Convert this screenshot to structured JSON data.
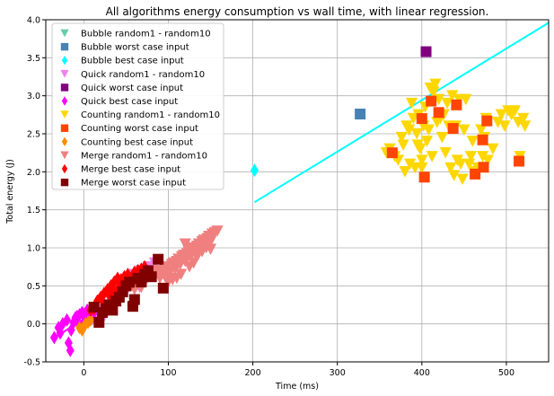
{
  "chart_data": {
    "type": "scatter",
    "title": "All algorithms energy consumption vs wall time, with linear regression.",
    "xlabel": "Time (ms)",
    "ylabel": "Total energy (J)",
    "xlim": [
      -45,
      550
    ],
    "ylim": [
      -0.5,
      4.0
    ],
    "xticks": [
      0,
      100,
      200,
      300,
      400,
      500
    ],
    "yticks": [
      -0.5,
      0.0,
      0.5,
      1.0,
      1.5,
      2.0,
      2.5,
      3.0,
      3.5,
      4.0
    ],
    "grid": true,
    "legend_position": "top-left",
    "series": [
      {
        "name": "Bubble random1 - random10",
        "marker": "triangle-down",
        "color": "#66cdaa",
        "points": []
      },
      {
        "name": "Bubble worst case input",
        "marker": "square",
        "color": "#4682b4",
        "points": [
          [
            327,
            2.76
          ]
        ]
      },
      {
        "name": "Bubble best case input",
        "marker": "diamond",
        "color": "#00ffff",
        "points": [
          [
            202,
            2.02
          ]
        ]
      },
      {
        "name": "Quick random1 - random10",
        "marker": "triangle-down",
        "color": "#ee82ee",
        "points": [
          [
            10,
            0.05
          ],
          [
            14,
            0.12
          ],
          [
            18,
            0.08
          ],
          [
            22,
            0.18
          ],
          [
            26,
            0.25
          ],
          [
            30,
            0.35
          ],
          [
            33,
            0.42
          ],
          [
            36,
            0.38
          ],
          [
            40,
            0.45
          ],
          [
            44,
            0.5
          ],
          [
            48,
            0.55
          ],
          [
            52,
            0.6
          ],
          [
            56,
            0.5
          ],
          [
            60,
            0.65
          ],
          [
            64,
            0.55
          ],
          [
            68,
            0.7
          ],
          [
            72,
            0.62
          ],
          [
            76,
            0.75
          ],
          [
            80,
            0.68
          ],
          [
            84,
            0.8
          ],
          [
            28,
            0.2
          ],
          [
            24,
            0.1
          ],
          [
            34,
            0.3
          ],
          [
            42,
            0.48
          ],
          [
            50,
            0.42
          ],
          [
            58,
            0.58
          ],
          [
            66,
            0.48
          ],
          [
            74,
            0.72
          ],
          [
            20,
            0.02
          ],
          [
            38,
            0.25
          ]
        ]
      },
      {
        "name": "Quick worst case input",
        "marker": "square",
        "color": "#800080",
        "points": [
          [
            405,
            3.58
          ]
        ]
      },
      {
        "name": "Quick best case input",
        "marker": "diamond",
        "color": "#ff00ff",
        "points": [
          [
            -35,
            -0.18
          ],
          [
            -30,
            -0.05
          ],
          [
            -25,
            0.0
          ],
          [
            -20,
            0.05
          ],
          [
            -18,
            -0.25
          ],
          [
            -15,
            -0.08
          ],
          [
            -12,
            0.02
          ],
          [
            -10,
            0.08
          ],
          [
            -8,
            0.1
          ],
          [
            -5,
            0.12
          ],
          [
            -2,
            0.15
          ],
          [
            0,
            0.02
          ],
          [
            2,
            0.08
          ],
          [
            5,
            0.05
          ],
          [
            8,
            0.1
          ],
          [
            12,
            0.15
          ],
          [
            -28,
            -0.12
          ],
          [
            -16,
            -0.35
          ],
          [
            -6,
            0.0
          ],
          [
            4,
            0.18
          ]
        ]
      },
      {
        "name": "Counting random1 - random10",
        "marker": "triangle-down",
        "color": "#ffd700",
        "points": [
          [
            358,
            2.25
          ],
          [
            362,
            2.3
          ],
          [
            368,
            2.2
          ],
          [
            372,
            2.15
          ],
          [
            376,
            2.45
          ],
          [
            378,
            2.35
          ],
          [
            382,
            2.6
          ],
          [
            386,
            2.1
          ],
          [
            388,
            2.9
          ],
          [
            390,
            2.7
          ],
          [
            392,
            2.05
          ],
          [
            394,
            2.5
          ],
          [
            396,
            2.75
          ],
          [
            398,
            2.3
          ],
          [
            400,
            2.15
          ],
          [
            402,
            2.6
          ],
          [
            404,
            2.85
          ],
          [
            406,
            2.4
          ],
          [
            408,
            2.55
          ],
          [
            410,
            3.1
          ],
          [
            412,
            2.2
          ],
          [
            414,
            3.05
          ],
          [
            416,
            3.15
          ],
          [
            418,
            2.65
          ],
          [
            420,
            2.95
          ],
          [
            422,
            2.7
          ],
          [
            424,
            2.45
          ],
          [
            426,
            2.75
          ],
          [
            430,
            2.9
          ],
          [
            434,
            2.05
          ],
          [
            436,
            3.0
          ],
          [
            438,
            1.95
          ],
          [
            440,
            2.6
          ],
          [
            442,
            2.15
          ],
          [
            444,
            2.95
          ],
          [
            446,
            2.1
          ],
          [
            448,
            1.9
          ],
          [
            450,
            2.55
          ],
          [
            452,
            2.95
          ],
          [
            456,
            2.1
          ],
          [
            458,
            2.2
          ],
          [
            460,
            2.4
          ],
          [
            462,
            2.0
          ],
          [
            466,
            2.05
          ],
          [
            470,
            2.55
          ],
          [
            472,
            2.2
          ],
          [
            474,
            2.45
          ],
          [
            476,
            2.7
          ],
          [
            478,
            2.15
          ],
          [
            484,
            2.3
          ],
          [
            490,
            2.65
          ],
          [
            494,
            2.75
          ],
          [
            498,
            2.6
          ],
          [
            502,
            2.8
          ],
          [
            506,
            2.75
          ],
          [
            510,
            2.8
          ],
          [
            514,
            2.65
          ],
          [
            516,
            2.2
          ],
          [
            520,
            2.7
          ],
          [
            522,
            2.6
          ],
          [
            380,
            2.0
          ],
          [
            385,
            2.55
          ],
          [
            395,
            2.35
          ],
          [
            400,
            2.05
          ],
          [
            428,
            2.25
          ],
          [
            432,
            2.6
          ]
        ]
      },
      {
        "name": "Counting worst case input",
        "marker": "square",
        "color": "#ff4500",
        "points": [
          [
            365,
            2.25
          ],
          [
            400,
            2.7
          ],
          [
            403,
            1.93
          ],
          [
            411,
            2.93
          ],
          [
            420,
            2.78
          ],
          [
            437,
            2.57
          ],
          [
            441,
            2.88
          ],
          [
            463,
            1.97
          ],
          [
            472,
            2.42
          ],
          [
            473,
            2.06
          ],
          [
            477,
            2.67
          ],
          [
            515,
            2.14
          ]
        ]
      },
      {
        "name": "Counting best case input",
        "marker": "diamond",
        "color": "#ff8c00",
        "points": [
          [
            -5,
            -0.05
          ],
          [
            2,
            0.0
          ],
          [
            8,
            0.05
          ],
          [
            -2,
            -0.08
          ],
          [
            5,
            0.02
          ]
        ]
      },
      {
        "name": "Merge random1 - random10",
        "marker": "triangle-down",
        "color": "#f08080",
        "points": [
          [
            90,
            0.6
          ],
          [
            92,
            0.65
          ],
          [
            94,
            0.7
          ],
          [
            96,
            0.62
          ],
          [
            98,
            0.72
          ],
          [
            100,
            0.75
          ],
          [
            102,
            0.68
          ],
          [
            104,
            0.78
          ],
          [
            106,
            0.8
          ],
          [
            108,
            0.72
          ],
          [
            110,
            0.82
          ],
          [
            112,
            0.85
          ],
          [
            114,
            0.78
          ],
          [
            116,
            0.88
          ],
          [
            118,
            0.9
          ],
          [
            120,
            0.82
          ],
          [
            122,
            0.92
          ],
          [
            124,
            0.95
          ],
          [
            126,
            0.88
          ],
          [
            128,
            0.98
          ],
          [
            130,
            1.0
          ],
          [
            132,
            0.92
          ],
          [
            134,
            1.02
          ],
          [
            136,
            1.05
          ],
          [
            138,
            0.98
          ],
          [
            140,
            1.08
          ],
          [
            142,
            1.1
          ],
          [
            144,
            1.02
          ],
          [
            146,
            1.12
          ],
          [
            148,
            1.15
          ],
          [
            150,
            1.08
          ],
          [
            152,
            1.18
          ],
          [
            155,
            1.2
          ],
          [
            158,
            1.22
          ],
          [
            110,
            0.6
          ],
          [
            115,
            0.65
          ],
          [
            120,
            1.05
          ],
          [
            125,
            0.75
          ],
          [
            130,
            0.8
          ],
          [
            135,
            0.9
          ],
          [
            140,
            0.95
          ],
          [
            145,
            1.0
          ],
          [
            150,
            0.98
          ],
          [
            100,
            0.55
          ],
          [
            105,
            0.58
          ],
          [
            62,
            0.5
          ],
          [
            66,
            0.55
          ],
          [
            70,
            0.6
          ],
          [
            74,
            0.58
          ],
          [
            78,
            0.62
          ],
          [
            82,
            0.66
          ],
          [
            86,
            0.7
          ],
          [
            60,
            0.45
          ],
          [
            64,
            0.52
          ],
          [
            68,
            0.48
          ]
        ]
      },
      {
        "name": "Merge best case input",
        "marker": "diamond",
        "color": "#ff0000",
        "points": [
          [
            8,
            0.18
          ],
          [
            12,
            0.2
          ],
          [
            16,
            0.3
          ],
          [
            20,
            0.35
          ],
          [
            24,
            0.4
          ],
          [
            28,
            0.45
          ],
          [
            32,
            0.5
          ],
          [
            36,
            0.55
          ],
          [
            40,
            0.6
          ],
          [
            44,
            0.58
          ],
          [
            48,
            0.62
          ],
          [
            52,
            0.65
          ],
          [
            56,
            0.6
          ],
          [
            60,
            0.68
          ],
          [
            64,
            0.7
          ],
          [
            68,
            0.72
          ],
          [
            72,
            0.75
          ],
          [
            24,
            0.25
          ],
          [
            30,
            0.38
          ],
          [
            36,
            0.42
          ],
          [
            42,
            0.48
          ],
          [
            50,
            0.52
          ],
          [
            58,
            0.55
          ],
          [
            66,
            0.62
          ]
        ]
      },
      {
        "name": "Merge worst case input",
        "marker": "square",
        "color": "#800000",
        "points": [
          [
            12,
            0.22
          ],
          [
            18,
            0.02
          ],
          [
            22,
            0.15
          ],
          [
            26,
            0.2
          ],
          [
            30,
            0.25
          ],
          [
            34,
            0.18
          ],
          [
            38,
            0.3
          ],
          [
            42,
            0.35
          ],
          [
            46,
            0.42
          ],
          [
            50,
            0.5
          ],
          [
            54,
            0.55
          ],
          [
            58,
            0.23
          ],
          [
            60,
            0.32
          ],
          [
            64,
            0.6
          ],
          [
            68,
            0.55
          ],
          [
            72,
            0.65
          ],
          [
            76,
            0.7
          ],
          [
            80,
            0.62
          ],
          [
            88,
            0.85
          ],
          [
            94,
            0.47
          ]
        ]
      }
    ],
    "regressions": [
      {
        "series": "Bubble",
        "color": "#00ffff",
        "x": [
          202,
          550
        ],
        "y": [
          1.6,
          3.96
        ]
      },
      {
        "series": "Merge",
        "color": "#ff0000",
        "x": [
          10,
          90
        ],
        "y": [
          0.15,
          0.75
        ]
      },
      {
        "series": "Merge worst",
        "color": "#800000",
        "x": [
          10,
          92
        ],
        "y": [
          0.05,
          0.78
        ]
      },
      {
        "series": "Quick best",
        "color": "#ff00ff",
        "x": [
          -35,
          15
        ],
        "y": [
          -0.18,
          0.16
        ]
      }
    ]
  }
}
